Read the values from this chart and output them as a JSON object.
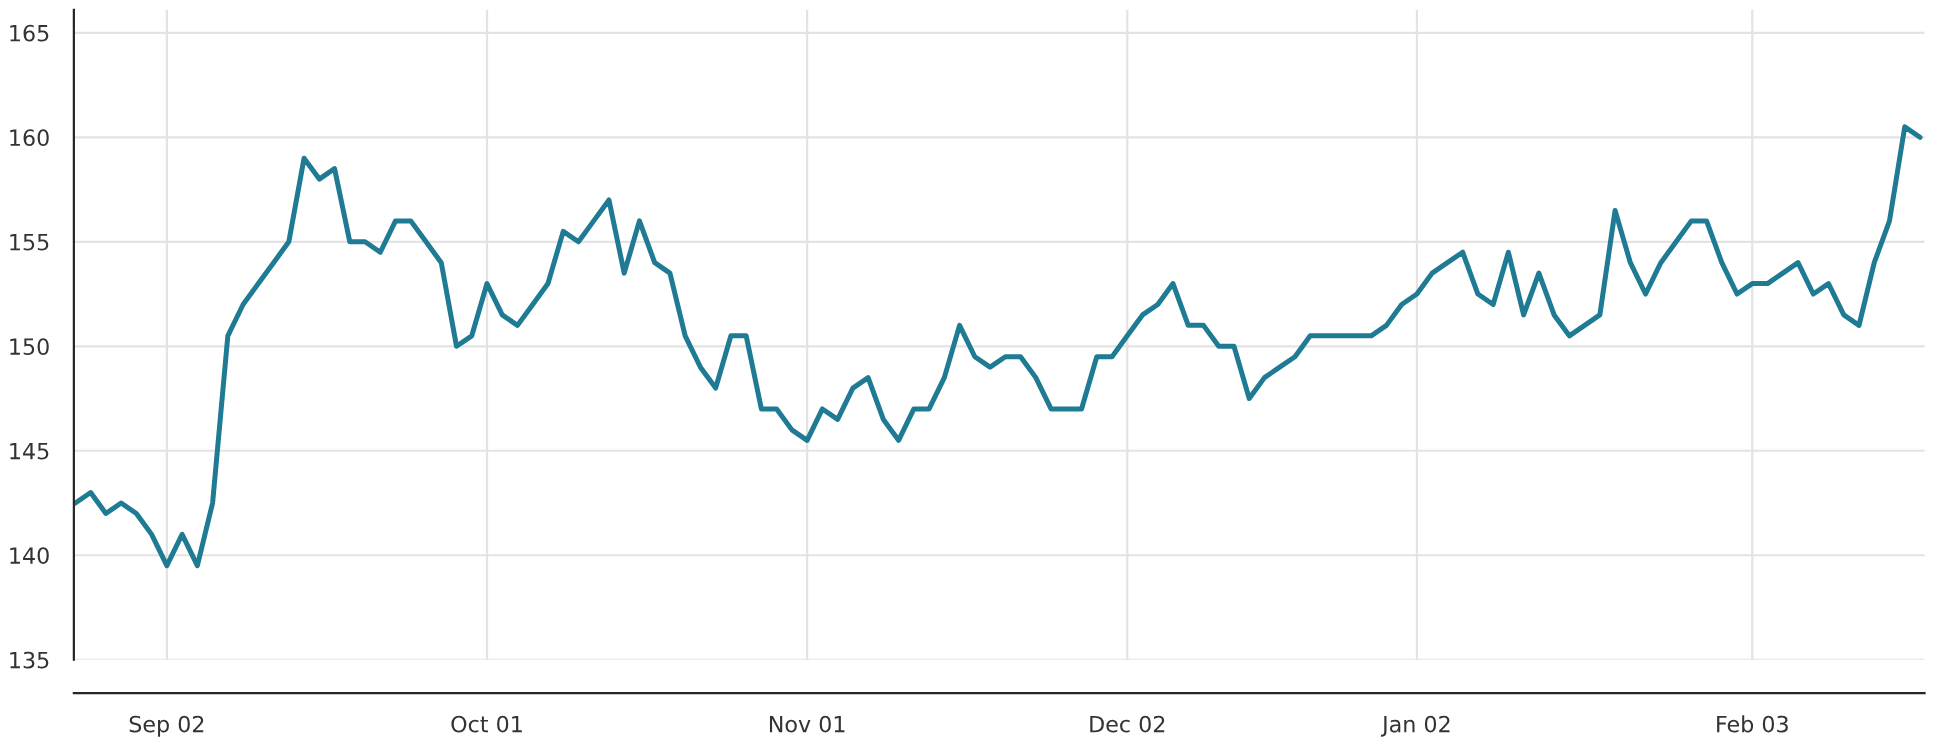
{
  "chart_data": {
    "type": "line",
    "categories": [
      null,
      null,
      null,
      null,
      null,
      null,
      "Sep 02",
      null,
      null,
      null,
      null,
      null,
      null,
      null,
      null,
      null,
      null,
      null,
      null,
      null,
      null,
      null,
      null,
      null,
      null,
      null,
      null,
      "Oct 01",
      null,
      null,
      null,
      null,
      null,
      null,
      null,
      null,
      null,
      null,
      null,
      null,
      null,
      null,
      null,
      null,
      null,
      null,
      null,
      null,
      "Nov 01",
      null,
      null,
      null,
      null,
      null,
      null,
      null,
      null,
      null,
      null,
      null,
      null,
      null,
      null,
      null,
      null,
      null,
      null,
      null,
      null,
      "Dec 02",
      null,
      null,
      null,
      null,
      null,
      null,
      null,
      null,
      null,
      null,
      null,
      null,
      null,
      null,
      null,
      null,
      null,
      null,
      "Jan 02",
      null,
      null,
      null,
      null,
      null,
      null,
      null,
      null,
      null,
      null,
      null,
      null,
      null,
      null,
      null,
      null,
      null,
      null,
      null,
      null,
      null,
      "Feb 03",
      null,
      null,
      null,
      null,
      null,
      null,
      null,
      null,
      null,
      null,
      null
    ],
    "series": [
      {
        "color": "#1f7a94",
        "values": [
          142.5,
          143,
          142,
          142.5,
          142,
          141,
          139.5,
          141,
          139.5,
          142.5,
          150.5,
          152,
          153,
          154,
          155,
          159,
          158,
          158.5,
          155,
          155,
          154.5,
          156,
          156,
          155,
          154,
          150,
          150.5,
          153,
          151.5,
          151,
          152,
          153,
          155.5,
          155,
          156,
          157,
          153.5,
          156,
          154,
          153.5,
          150.5,
          149,
          148,
          150.5,
          150.5,
          147,
          147,
          146,
          145.5,
          147,
          146.5,
          148,
          148.5,
          146.5,
          145.5,
          147,
          147,
          148.5,
          151,
          149.5,
          149,
          149.5,
          149.5,
          148.5,
          147,
          147,
          147,
          149.5,
          149.5,
          150.5,
          151.5,
          152,
          153,
          151,
          151,
          150,
          150,
          147.5,
          148.5,
          149,
          149.5,
          150.5,
          150.5,
          150.5,
          150.5,
          150.5,
          151,
          152,
          152.5,
          153.5,
          154,
          154.5,
          152.5,
          152,
          154.5,
          151.5,
          153.5,
          151.5,
          150.5,
          151,
          151.5,
          156.5,
          154,
          152.5,
          154,
          155,
          156,
          156,
          154,
          152.5,
          153,
          153,
          153.5,
          154,
          152.5,
          153,
          151.5,
          151,
          154,
          156,
          160.5,
          160
        ]
      }
    ],
    "ylim": [
      135,
      166.1
    ],
    "yticks": [
      135,
      140,
      145,
      150,
      155,
      160,
      165
    ],
    "grid": true,
    "marker": "none",
    "line_style": "solid",
    "legend": false
  }
}
